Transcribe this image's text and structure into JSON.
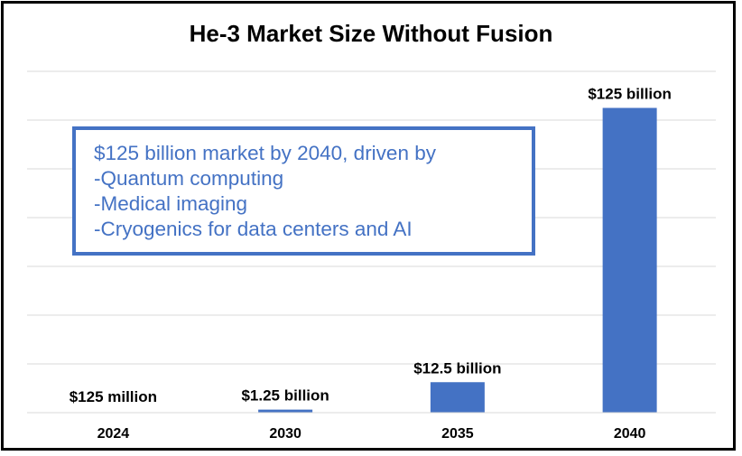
{
  "chart_data": {
    "type": "bar",
    "title": "He-3 Market Size Without Fusion",
    "categories": [
      "2024",
      "2030",
      "2035",
      "2040"
    ],
    "values": [
      0.125,
      1.25,
      12.5,
      125
    ],
    "unit": "billion USD",
    "data_labels": [
      "$125 million",
      "$1.25 billion",
      "$12.5 billion",
      "$125 billion"
    ],
    "xlabel": "",
    "ylabel": "",
    "ylim": [
      0,
      140
    ],
    "grid": true,
    "legend": "none",
    "bar_color": "#4472C4",
    "annotation": {
      "lines": [
        "$125 billion market by 2040, driven by",
        "-Quantum computing",
        "-Medical imaging",
        "-Cryogenics for data centers and AI"
      ],
      "color": "#4472C4"
    }
  }
}
